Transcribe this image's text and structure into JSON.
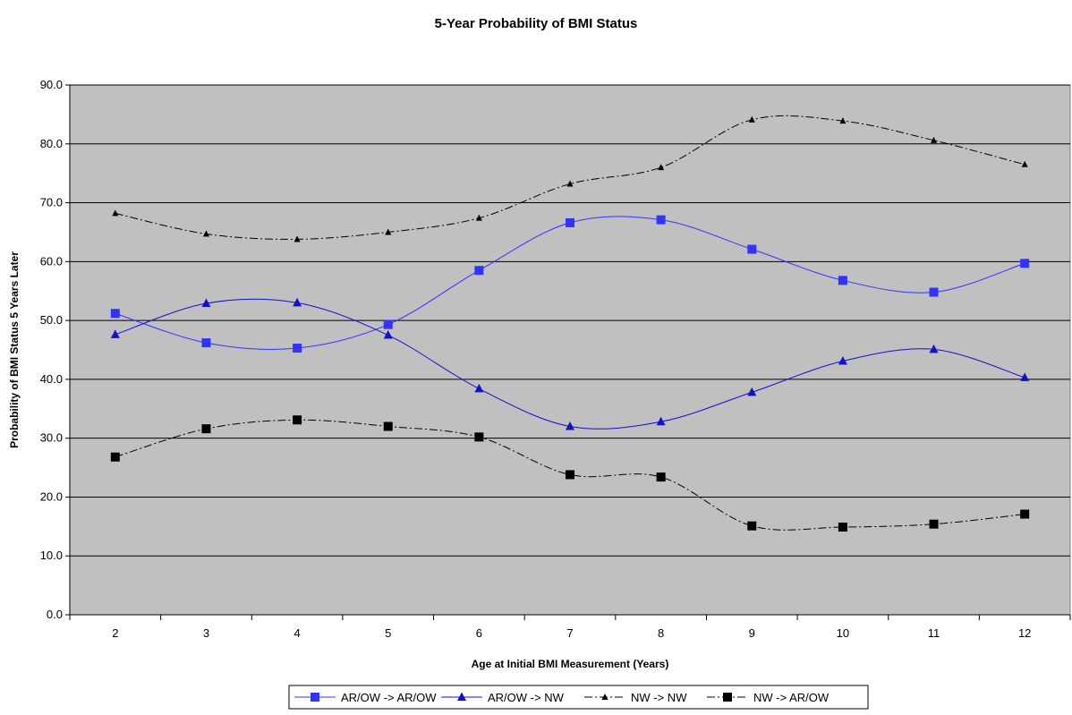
{
  "chart_data": {
    "type": "line",
    "title": "5-Year Probability of BMI Status",
    "xlabel": "Age at Initial BMI Measurement (Years)",
    "ylabel": "Probability of BMI Status 5 Years Later",
    "x": [
      2,
      3,
      4,
      5,
      6,
      7,
      8,
      9,
      10,
      11,
      12
    ],
    "ylim": [
      0,
      90
    ],
    "yticks": [
      "0.0",
      "10.0",
      "20.0",
      "30.0",
      "40.0",
      "50.0",
      "60.0",
      "70.0",
      "80.0",
      "90.0"
    ],
    "grid": "horizontal",
    "legend_position": "bottom",
    "plot_background": "#c0c0c0",
    "series": [
      {
        "name": "AR/OW -> AR/OW",
        "color": "#3333ff",
        "marker": "square",
        "dash": "solid",
        "values": [
          51.2,
          46.2,
          45.3,
          49.3,
          58.5,
          66.6,
          67.1,
          62.1,
          56.8,
          54.8,
          59.7
        ]
      },
      {
        "name": "AR/OW -> NW",
        "color": "#1111cc",
        "marker": "triangle",
        "dash": "solid",
        "values": [
          47.6,
          52.9,
          53.0,
          47.5,
          38.4,
          32.0,
          32.8,
          37.8,
          43.1,
          45.1,
          40.3
        ]
      },
      {
        "name": "NW -> NW",
        "color": "#000000",
        "marker": "triangle-small",
        "dash": "dashdot",
        "values": [
          68.2,
          64.7,
          63.8,
          65.0,
          67.4,
          73.2,
          76.0,
          84.1,
          83.9,
          80.6,
          76.5
        ]
      },
      {
        "name": "NW -> AR/OW",
        "color": "#000000",
        "marker": "square",
        "dash": "dashdot",
        "values": [
          26.8,
          31.6,
          33.1,
          32.0,
          30.2,
          23.8,
          23.4,
          15.1,
          14.9,
          15.4,
          17.1
        ]
      }
    ]
  }
}
